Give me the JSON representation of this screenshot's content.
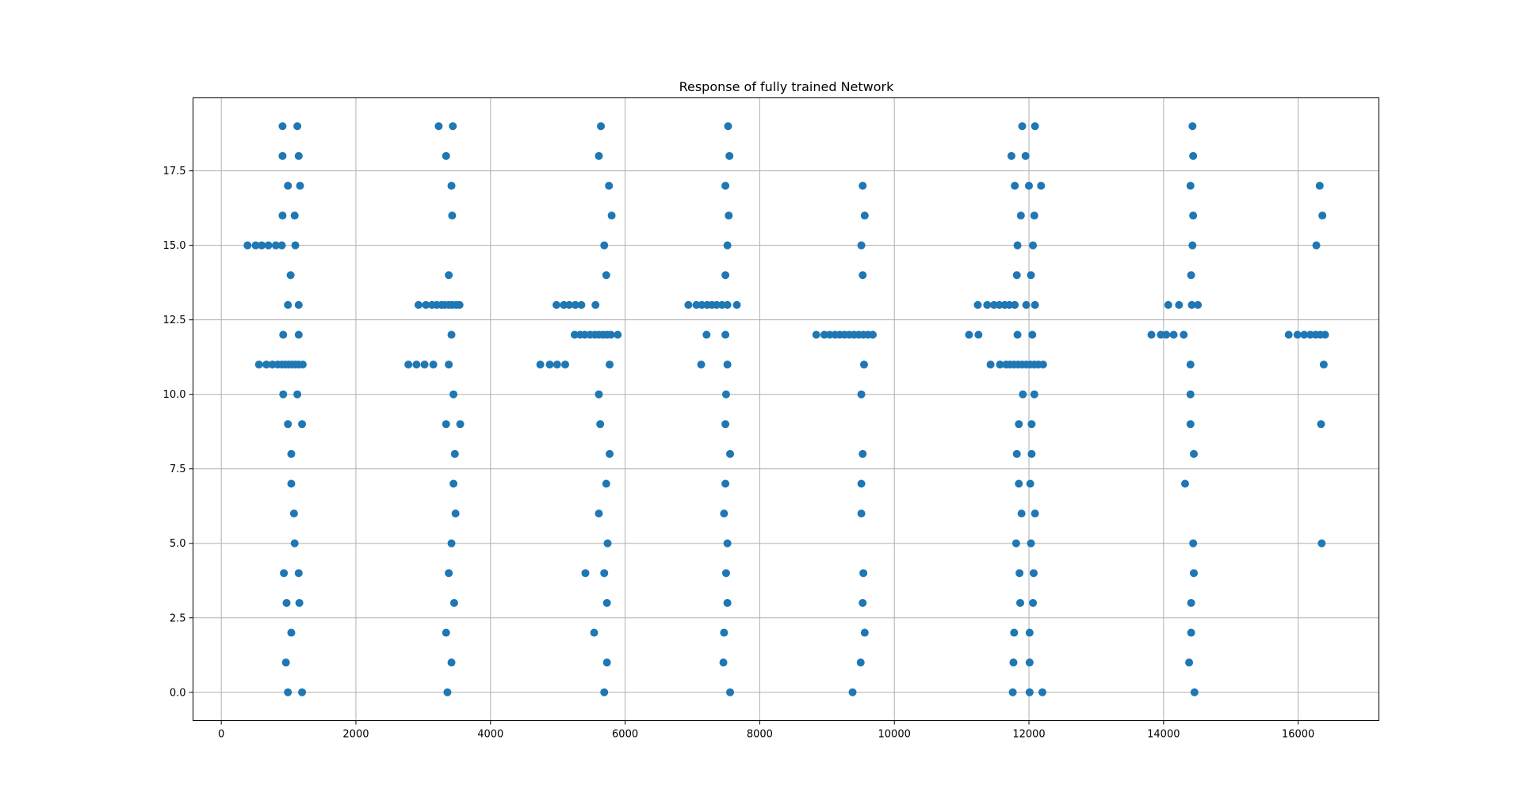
{
  "chart_data": {
    "type": "scatter",
    "title": "Response of fully trained Network",
    "xlabel": "",
    "ylabel": "",
    "xlim": [
      -420,
      17200
    ],
    "ylim": [
      -0.95,
      19.95
    ],
    "xticks": [
      0,
      2000,
      4000,
      6000,
      8000,
      10000,
      12000,
      14000,
      16000
    ],
    "xtick_labels": [
      "0",
      "2000",
      "4000",
      "6000",
      "8000",
      "10000",
      "12000",
      "14000",
      "16000"
    ],
    "yticks": [
      0,
      2.5,
      5,
      7.5,
      10,
      12.5,
      15,
      17.5
    ],
    "ytick_labels": [
      "0.0",
      "2.5",
      "5.0",
      "7.5",
      "10.0",
      "12.5",
      "15.0",
      "17.5"
    ],
    "grid": true,
    "marker_color": "#1f77b4",
    "series": [
      {
        "points": [
          [
            910,
            19
          ],
          [
            1130,
            19
          ],
          [
            910,
            18
          ],
          [
            1150,
            18
          ],
          [
            990,
            17
          ],
          [
            1170,
            17
          ],
          [
            910,
            16
          ],
          [
            1090,
            16
          ],
          [
            390,
            15
          ],
          [
            510,
            15
          ],
          [
            600,
            15
          ],
          [
            700,
            15
          ],
          [
            810,
            15
          ],
          [
            900,
            15
          ],
          [
            1100,
            15
          ],
          [
            1030,
            14
          ],
          [
            990,
            13
          ],
          [
            1150,
            13
          ],
          [
            920,
            12
          ],
          [
            1150,
            12
          ],
          [
            560,
            11
          ],
          [
            670,
            11
          ],
          [
            760,
            11
          ],
          [
            840,
            11
          ],
          [
            900,
            11
          ],
          [
            950,
            11
          ],
          [
            1000,
            11
          ],
          [
            1050,
            11
          ],
          [
            1100,
            11
          ],
          [
            1150,
            11
          ],
          [
            1210,
            11
          ],
          [
            920,
            10
          ],
          [
            1130,
            10
          ],
          [
            990,
            9
          ],
          [
            1200,
            9
          ],
          [
            1040,
            8
          ],
          [
            1040,
            7
          ],
          [
            1080,
            6
          ],
          [
            1090,
            5
          ],
          [
            930,
            4
          ],
          [
            1150,
            4
          ],
          [
            970,
            3
          ],
          [
            1160,
            3
          ],
          [
            1040,
            2
          ],
          [
            960,
            1
          ],
          [
            990,
            0
          ],
          [
            1200,
            0
          ],
          [
            3230,
            19
          ],
          [
            3440,
            19
          ],
          [
            3340,
            18
          ],
          [
            3420,
            17
          ],
          [
            3430,
            16
          ],
          [
            3380,
            14
          ],
          [
            2930,
            13
          ],
          [
            3040,
            13
          ],
          [
            3130,
            13
          ],
          [
            3200,
            13
          ],
          [
            3270,
            13
          ],
          [
            3320,
            13
          ],
          [
            3380,
            13
          ],
          [
            3430,
            13
          ],
          [
            3490,
            13
          ],
          [
            3540,
            13
          ],
          [
            3420,
            12
          ],
          [
            2780,
            11
          ],
          [
            2900,
            11
          ],
          [
            3020,
            11
          ],
          [
            3150,
            11
          ],
          [
            3380,
            11
          ],
          [
            3450,
            10
          ],
          [
            3340,
            9
          ],
          [
            3550,
            9
          ],
          [
            3470,
            8
          ],
          [
            3450,
            7
          ],
          [
            3480,
            6
          ],
          [
            3420,
            5
          ],
          [
            3380,
            4
          ],
          [
            3460,
            3
          ],
          [
            3340,
            2
          ],
          [
            3420,
            1
          ],
          [
            3360,
            0
          ],
          [
            5640,
            19
          ],
          [
            5610,
            18
          ],
          [
            5760,
            17
          ],
          [
            5800,
            16
          ],
          [
            5690,
            15
          ],
          [
            5720,
            14
          ],
          [
            4980,
            13
          ],
          [
            5090,
            13
          ],
          [
            5170,
            13
          ],
          [
            5260,
            13
          ],
          [
            5350,
            13
          ],
          [
            5560,
            13
          ],
          [
            5250,
            12
          ],
          [
            5330,
            12
          ],
          [
            5400,
            12
          ],
          [
            5480,
            12
          ],
          [
            5550,
            12
          ],
          [
            5610,
            12
          ],
          [
            5670,
            12
          ],
          [
            5730,
            12
          ],
          [
            5790,
            12
          ],
          [
            5890,
            12
          ],
          [
            4740,
            11
          ],
          [
            4880,
            11
          ],
          [
            4990,
            11
          ],
          [
            5110,
            11
          ],
          [
            5770,
            11
          ],
          [
            5610,
            10
          ],
          [
            5630,
            9
          ],
          [
            5770,
            8
          ],
          [
            5720,
            7
          ],
          [
            5610,
            6
          ],
          [
            5740,
            5
          ],
          [
            5410,
            4
          ],
          [
            5690,
            4
          ],
          [
            5730,
            3
          ],
          [
            5540,
            2
          ],
          [
            5730,
            1
          ],
          [
            5690,
            0
          ],
          [
            7530,
            19
          ],
          [
            7550,
            18
          ],
          [
            7490,
            17
          ],
          [
            7540,
            16
          ],
          [
            7520,
            15
          ],
          [
            7490,
            14
          ],
          [
            6940,
            13
          ],
          [
            7060,
            13
          ],
          [
            7140,
            13
          ],
          [
            7220,
            13
          ],
          [
            7290,
            13
          ],
          [
            7360,
            13
          ],
          [
            7440,
            13
          ],
          [
            7520,
            13
          ],
          [
            7660,
            13
          ],
          [
            7210,
            12
          ],
          [
            7490,
            12
          ],
          [
            7130,
            11
          ],
          [
            7520,
            11
          ],
          [
            7500,
            10
          ],
          [
            7490,
            9
          ],
          [
            7560,
            8
          ],
          [
            7490,
            7
          ],
          [
            7470,
            6
          ],
          [
            7520,
            5
          ],
          [
            7500,
            4
          ],
          [
            7520,
            3
          ],
          [
            7470,
            2
          ],
          [
            7460,
            1
          ],
          [
            7560,
            0
          ],
          [
            9530,
            17
          ],
          [
            9560,
            16
          ],
          [
            9510,
            15
          ],
          [
            9530,
            14
          ],
          [
            8840,
            12
          ],
          [
            8960,
            12
          ],
          [
            9040,
            12
          ],
          [
            9120,
            12
          ],
          [
            9190,
            12
          ],
          [
            9260,
            12
          ],
          [
            9330,
            12
          ],
          [
            9400,
            12
          ],
          [
            9470,
            12
          ],
          [
            9540,
            12
          ],
          [
            9610,
            12
          ],
          [
            9680,
            12
          ],
          [
            9550,
            11
          ],
          [
            9510,
            10
          ],
          [
            9530,
            8
          ],
          [
            9510,
            7
          ],
          [
            9510,
            6
          ],
          [
            9540,
            4
          ],
          [
            9530,
            3
          ],
          [
            9560,
            2
          ],
          [
            9500,
            1
          ],
          [
            9380,
            0
          ],
          [
            11900,
            19
          ],
          [
            12090,
            19
          ],
          [
            11740,
            18
          ],
          [
            11950,
            18
          ],
          [
            11790,
            17
          ],
          [
            12000,
            17
          ],
          [
            12180,
            17
          ],
          [
            11880,
            16
          ],
          [
            12080,
            16
          ],
          [
            11830,
            15
          ],
          [
            12060,
            15
          ],
          [
            11820,
            14
          ],
          [
            12030,
            14
          ],
          [
            11240,
            13
          ],
          [
            11380,
            13
          ],
          [
            11480,
            13
          ],
          [
            11560,
            13
          ],
          [
            11640,
            13
          ],
          [
            11710,
            13
          ],
          [
            11790,
            13
          ],
          [
            11960,
            13
          ],
          [
            12090,
            13
          ],
          [
            11110,
            12
          ],
          [
            11250,
            12
          ],
          [
            11830,
            12
          ],
          [
            12050,
            12
          ],
          [
            11430,
            11
          ],
          [
            11570,
            11
          ],
          [
            11660,
            11
          ],
          [
            11720,
            11
          ],
          [
            11780,
            11
          ],
          [
            11840,
            11
          ],
          [
            11900,
            11
          ],
          [
            11960,
            11
          ],
          [
            12020,
            11
          ],
          [
            12080,
            11
          ],
          [
            12140,
            11
          ],
          [
            12210,
            11
          ],
          [
            11910,
            10
          ],
          [
            12080,
            10
          ],
          [
            11850,
            9
          ],
          [
            12040,
            9
          ],
          [
            11820,
            8
          ],
          [
            12040,
            8
          ],
          [
            11850,
            7
          ],
          [
            12020,
            7
          ],
          [
            11890,
            6
          ],
          [
            12090,
            6
          ],
          [
            11810,
            5
          ],
          [
            12030,
            5
          ],
          [
            11860,
            4
          ],
          [
            12070,
            4
          ],
          [
            11870,
            3
          ],
          [
            12060,
            3
          ],
          [
            11780,
            2
          ],
          [
            12010,
            2
          ],
          [
            11770,
            1
          ],
          [
            12010,
            1
          ],
          [
            11760,
            0
          ],
          [
            12010,
            0
          ],
          [
            12200,
            0
          ],
          [
            14430,
            19
          ],
          [
            14440,
            18
          ],
          [
            14400,
            17
          ],
          [
            14440,
            16
          ],
          [
            14430,
            15
          ],
          [
            14410,
            14
          ],
          [
            14070,
            13
          ],
          [
            14230,
            13
          ],
          [
            14420,
            13
          ],
          [
            14510,
            13
          ],
          [
            13820,
            12
          ],
          [
            13960,
            12
          ],
          [
            14040,
            12
          ],
          [
            14150,
            12
          ],
          [
            14300,
            12
          ],
          [
            14400,
            11
          ],
          [
            14400,
            10
          ],
          [
            14400,
            9
          ],
          [
            14450,
            8
          ],
          [
            14320,
            7
          ],
          [
            14440,
            5
          ],
          [
            14450,
            4
          ],
          [
            14410,
            3
          ],
          [
            14410,
            2
          ],
          [
            14380,
            1
          ],
          [
            14460,
            0
          ],
          [
            16320,
            17
          ],
          [
            16360,
            16
          ],
          [
            16270,
            15
          ],
          [
            15860,
            12
          ],
          [
            15990,
            12
          ],
          [
            16090,
            12
          ],
          [
            16180,
            12
          ],
          [
            16260,
            12
          ],
          [
            16330,
            12
          ],
          [
            16400,
            12
          ],
          [
            16380,
            11
          ],
          [
            16340,
            9
          ],
          [
            16350,
            5
          ]
        ]
      }
    ]
  }
}
